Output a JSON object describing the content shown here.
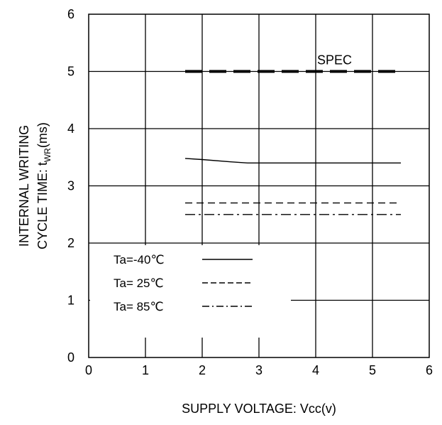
{
  "chart_data": {
    "type": "line",
    "xlabel": "SUPPLY VOLTAGE: Vcc(v)",
    "ylabel_line1": "INTERNAL WRITING",
    "ylabel_line2": {
      "prefix": "CYCLE TIME: t",
      "subscript": "WR",
      "suffix": "(ms)"
    },
    "xlim": [
      0,
      6
    ],
    "ylim": [
      0,
      6
    ],
    "x_ticks": [
      "0",
      "1",
      "2",
      "3",
      "4",
      "5",
      "6"
    ],
    "y_ticks": [
      "0",
      "1",
      "2",
      "3",
      "4",
      "5",
      "6"
    ],
    "grid": true,
    "legend_position": "lower-left",
    "series": [
      {
        "name": "Ta=-40℃",
        "style": "solid",
        "x": [
          1.7,
          2.0,
          2.5,
          2.8,
          3.0,
          4.0,
          5.0,
          5.5
        ],
        "y": [
          3.48,
          3.46,
          3.42,
          3.4,
          3.4,
          3.4,
          3.4,
          3.4
        ]
      },
      {
        "name": "Ta= 25℃",
        "style": "dashed",
        "x": [
          1.7,
          5.5
        ],
        "y": [
          2.7,
          2.7
        ]
      },
      {
        "name": "Ta= 85℃",
        "style": "dashdot",
        "x": [
          1.7,
          5.5
        ],
        "y": [
          2.5,
          2.5
        ]
      }
    ],
    "spec": {
      "label": "SPEC",
      "x": [
        1.7,
        5.4
      ],
      "y": 5.0
    }
  }
}
